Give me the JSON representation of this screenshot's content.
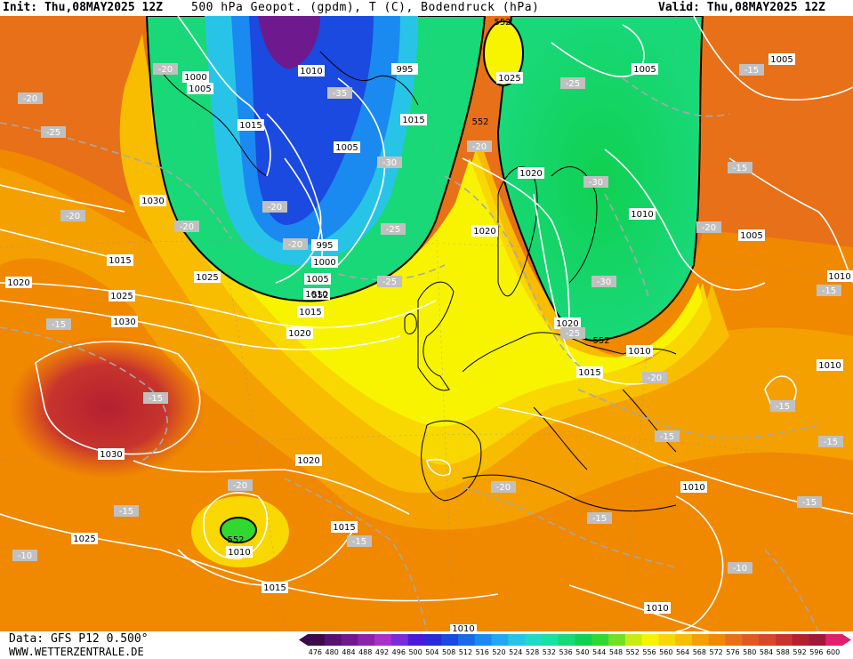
{
  "header": {
    "init": "Init: Thu,08MAY2025 12Z",
    "title": "500 hPa Geopot. (gpdm), T (C), Bodendruck (hPa)",
    "valid": "Valid: Thu,08MAY2025 12Z"
  },
  "footer": {
    "data_source": "Data: GFS P12 0.500°",
    "website": "WWW.WETTERZENTRALE.DE"
  },
  "legend": {
    "unit": "gpdm",
    "ticks": [
      "476",
      "480",
      "484",
      "488",
      "492",
      "496",
      "500",
      "504",
      "508",
      "512",
      "516",
      "520",
      "524",
      "528",
      "532",
      "536",
      "540",
      "544",
      "548",
      "552",
      "556",
      "560",
      "564",
      "568",
      "572",
      "576",
      "580",
      "584",
      "588",
      "592",
      "596",
      "600"
    ],
    "colors": [
      "#3a0a4a",
      "#55126e",
      "#6e1a8e",
      "#8a24ac",
      "#a832c8",
      "#7a2ad8",
      "#4a1ad8",
      "#2a2ad8",
      "#1a4ae0",
      "#1a6ae8",
      "#1a8af0",
      "#22a8f0",
      "#28c4e8",
      "#22d8c8",
      "#1ae0a0",
      "#18d878",
      "#10d050",
      "#30d830",
      "#70e020",
      "#c8ec10",
      "#f8f400",
      "#f8d800",
      "#f8bc00",
      "#f4a000",
      "#f08800",
      "#e87018",
      "#e05a20",
      "#d84828",
      "#c8342c",
      "#b42030",
      "#a01838",
      "#e0206c"
    ]
  },
  "map_labels": {
    "pressure": [
      "1000",
      "1005",
      "1010",
      "1015",
      "1015",
      "995",
      "1005",
      "1025",
      "1005",
      "1030",
      "1020",
      "1010",
      "1005",
      "995",
      "1000",
      "1005",
      "1010",
      "1015",
      "1020",
      "1025",
      "1030",
      "1020",
      "1025",
      "1020",
      "1010",
      "1015",
      "1010",
      "1010",
      "1030",
      "1020",
      "1015",
      "1025",
      "1010",
      "1010",
      "1015",
      "1010",
      "1005",
      "1020",
      "1015",
      "1010"
    ],
    "temperature": [
      "-20",
      "-20",
      "-25",
      "-35",
      "-25",
      "-30",
      "-20",
      "-25",
      "-30",
      "-20",
      "-25",
      "-20",
      "-20",
      "-15",
      "-20",
      "-15",
      "-30",
      "-20",
      "-15",
      "-20",
      "-15",
      "-15",
      "-15",
      "-15",
      "-20",
      "-25",
      "-15",
      "-20",
      "-15",
      "-10",
      "-10",
      "-15",
      "-15",
      "-15"
    ],
    "geopotential": [
      "552",
      "552",
      "552",
      "552",
      "552"
    ]
  }
}
